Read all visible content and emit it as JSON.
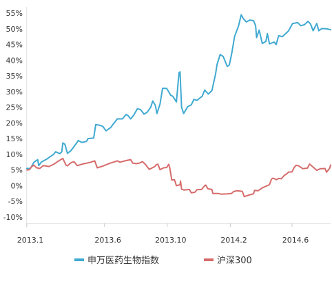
{
  "chart_data": {
    "type": "line",
    "x_ticks": [
      "2013.1",
      "2013.6",
      "2013.10",
      "2014.2",
      "2014.6"
    ],
    "y_ticks": [
      "55%",
      "50%",
      "45%",
      "40%",
      "35%",
      "30%",
      "25%",
      "20%",
      "15%",
      "10%",
      "5%",
      "0%",
      "-5%",
      "-10%"
    ],
    "y_unit": "%",
    "ylim": [
      -12,
      57
    ],
    "xlim": [
      "2013-01-01",
      "2014-08-15"
    ],
    "grid": false,
    "legend_position": "bottom",
    "series": [
      {
        "name": "申万医药生物指数",
        "color": "#3fa9d1",
        "points": [
          [
            "2013-01-01",
            5.5
          ],
          [
            "2013-01-06",
            5.5
          ],
          [
            "2013-01-08",
            5.5
          ],
          [
            "2013-01-15",
            7.5
          ],
          [
            "2013-01-22",
            8.3
          ],
          [
            "2013-01-24",
            6.4
          ],
          [
            "2013-01-29",
            7.5
          ],
          [
            "2013-02-09",
            8.5
          ],
          [
            "2013-02-22",
            10
          ],
          [
            "2013-02-26",
            10.8
          ],
          [
            "2013-03-06",
            10.2
          ],
          [
            "2013-03-10",
            10.8
          ],
          [
            "2013-03-12",
            13.6
          ],
          [
            "2013-03-16",
            13.2
          ],
          [
            "2013-03-21",
            10.3
          ],
          [
            "2013-03-28",
            11.2
          ],
          [
            "2013-04-07",
            13.4
          ],
          [
            "2013-04-11",
            14.4
          ],
          [
            "2013-04-18",
            13.8
          ],
          [
            "2013-04-27",
            14.1
          ],
          [
            "2013-04-30",
            15
          ],
          [
            "2013-05-11",
            15.2
          ],
          [
            "2013-05-15",
            19.5
          ],
          [
            "2013-05-24",
            19.2
          ],
          [
            "2013-05-29",
            18.9
          ],
          [
            "2013-06-04",
            17.5
          ],
          [
            "2013-06-13",
            18.5
          ],
          [
            "2013-06-17",
            19.4
          ],
          [
            "2013-06-26",
            21.3
          ],
          [
            "2013-07-06",
            21.3
          ],
          [
            "2013-07-13",
            22.7
          ],
          [
            "2013-07-17",
            22.3
          ],
          [
            "2013-07-22",
            21.3
          ],
          [
            "2013-07-28",
            22.5
          ],
          [
            "2013-08-04",
            24.5
          ],
          [
            "2013-08-10",
            24.3
          ],
          [
            "2013-08-17",
            22.8
          ],
          [
            "2013-08-23",
            23.4
          ],
          [
            "2013-08-30",
            25
          ],
          [
            "2013-09-03",
            27
          ],
          [
            "2013-09-08",
            25.6
          ],
          [
            "2013-09-11",
            23
          ],
          [
            "2013-09-17",
            26
          ],
          [
            "2013-09-22",
            31
          ],
          [
            "2013-09-30",
            31
          ],
          [
            "2013-10-08",
            28.8
          ],
          [
            "2013-10-12",
            28.5
          ],
          [
            "2013-10-19",
            26.7
          ],
          [
            "2013-10-24",
            36
          ],
          [
            "2013-10-26",
            36.3
          ],
          [
            "2013-10-29",
            25
          ],
          [
            "2013-11-02",
            23
          ],
          [
            "2013-11-10",
            25.2
          ],
          [
            "2013-11-17",
            25.8
          ],
          [
            "2013-11-22",
            27.5
          ],
          [
            "2013-11-28",
            27.2
          ],
          [
            "2013-12-04",
            28
          ],
          [
            "2013-12-08",
            28.5
          ],
          [
            "2013-12-13",
            30.5
          ],
          [
            "2013-12-20",
            29.2
          ],
          [
            "2013-12-27",
            30.3
          ],
          [
            "2014-01-03",
            35.5
          ],
          [
            "2014-01-06",
            38.6
          ],
          [
            "2014-01-12",
            41.8
          ],
          [
            "2014-01-18",
            41.2
          ],
          [
            "2014-01-26",
            38
          ],
          [
            "2014-01-30",
            38.5
          ],
          [
            "2014-02-04",
            42.5
          ],
          [
            "2014-02-09",
            47.5
          ],
          [
            "2014-02-17",
            51
          ],
          [
            "2014-02-22",
            54.5
          ],
          [
            "2014-02-26",
            53.3
          ],
          [
            "2014-03-04",
            52.2
          ],
          [
            "2014-03-11",
            52.8
          ],
          [
            "2014-03-18",
            52.6
          ],
          [
            "2014-03-22",
            51
          ],
          [
            "2014-03-24",
            47.2
          ],
          [
            "2014-03-29",
            49.6
          ],
          [
            "2014-04-04",
            45.3
          ],
          [
            "2014-04-11",
            46
          ],
          [
            "2014-04-14",
            48.5
          ],
          [
            "2014-04-18",
            45.2
          ],
          [
            "2014-04-27",
            45.8
          ],
          [
            "2014-05-01",
            45
          ],
          [
            "2014-05-06",
            47.8
          ],
          [
            "2014-05-13",
            47.5
          ],
          [
            "2014-05-21",
            48.7
          ],
          [
            "2014-05-25",
            49.3
          ],
          [
            "2014-06-02",
            51.7
          ],
          [
            "2014-06-12",
            52
          ],
          [
            "2014-06-18",
            51
          ],
          [
            "2014-06-25",
            51.3
          ],
          [
            "2014-07-02",
            52.4
          ],
          [
            "2014-07-07",
            51.5
          ],
          [
            "2014-07-12",
            49.4
          ],
          [
            "2014-07-19",
            51.7
          ],
          [
            "2014-07-23",
            49.4
          ],
          [
            "2014-07-29",
            50.1
          ],
          [
            "2014-08-08",
            50
          ],
          [
            "2014-08-15",
            49.7
          ]
        ]
      },
      {
        "name": "沪深300",
        "color": "#d66b6b",
        "points": [
          [
            "2013-01-01",
            5
          ],
          [
            "2013-01-06",
            5.1
          ],
          [
            "2013-01-11",
            6.2
          ],
          [
            "2013-01-15",
            6.5
          ],
          [
            "2013-01-20",
            5.7
          ],
          [
            "2013-01-26",
            5.5
          ],
          [
            "2013-02-02",
            6.4
          ],
          [
            "2013-02-13",
            6.1
          ],
          [
            "2013-02-22",
            6.8
          ],
          [
            "2013-03-02",
            7.7
          ],
          [
            "2013-03-12",
            8.7
          ],
          [
            "2013-03-18",
            6.6
          ],
          [
            "2013-03-21",
            6.3
          ],
          [
            "2013-03-26",
            7.1
          ],
          [
            "2013-03-30",
            7.5
          ],
          [
            "2013-04-03",
            7.6
          ],
          [
            "2013-04-09",
            6.4
          ],
          [
            "2013-04-22",
            7
          ],
          [
            "2013-05-04",
            7.4
          ],
          [
            "2013-05-13",
            7.9
          ],
          [
            "2013-05-18",
            5.7
          ],
          [
            "2013-05-28",
            6.2
          ],
          [
            "2013-06-11",
            7.1
          ],
          [
            "2013-06-26",
            7.9
          ],
          [
            "2013-07-01",
            7.5
          ],
          [
            "2013-07-13",
            8
          ],
          [
            "2013-07-22",
            8.3
          ],
          [
            "2013-07-26",
            7.2
          ],
          [
            "2013-08-02",
            7
          ],
          [
            "2013-08-08",
            7.2
          ],
          [
            "2013-08-14",
            7.7
          ],
          [
            "2013-08-20",
            6.7
          ],
          [
            "2013-08-27",
            5.2
          ],
          [
            "2013-09-02",
            5.7
          ],
          [
            "2013-09-07",
            6.1
          ],
          [
            "2013-09-10",
            6.7
          ],
          [
            "2013-09-13",
            6.8
          ],
          [
            "2013-09-17",
            5.1
          ],
          [
            "2013-09-24",
            5.7
          ],
          [
            "2013-09-30",
            5.8
          ],
          [
            "2013-10-04",
            6.8
          ],
          [
            "2013-10-06",
            5.8
          ],
          [
            "2013-10-10",
            1.8
          ],
          [
            "2013-10-15",
            1.9
          ],
          [
            "2013-10-19",
            0
          ],
          [
            "2013-10-26",
            0.3
          ],
          [
            "2013-10-27",
            1.5
          ],
          [
            "2013-10-29",
            -1.1
          ],
          [
            "2013-11-03",
            -1.4
          ],
          [
            "2013-11-13",
            -1.2
          ],
          [
            "2013-11-17",
            -2.3
          ],
          [
            "2013-11-24",
            -2.1
          ],
          [
            "2013-11-28",
            -1.3
          ],
          [
            "2013-12-07",
            -1.2
          ],
          [
            "2013-12-13",
            0
          ],
          [
            "2013-12-15",
            0.2
          ],
          [
            "2013-12-19",
            -1
          ],
          [
            "2013-12-27",
            -1.2
          ],
          [
            "2013-12-29",
            -2.5
          ],
          [
            "2014-01-09",
            -2.5
          ],
          [
            "2014-01-14",
            -2.7
          ],
          [
            "2014-01-27",
            -2.6
          ],
          [
            "2014-02-03",
            -2.5
          ],
          [
            "2014-02-07",
            -1.9
          ],
          [
            "2014-02-14",
            -1.6
          ],
          [
            "2014-02-24",
            -1.8
          ],
          [
            "2014-02-28",
            -3.5
          ],
          [
            "2014-03-09",
            -3
          ],
          [
            "2014-03-18",
            -2.6
          ],
          [
            "2014-03-20",
            -1.5
          ],
          [
            "2014-03-27",
            -1.6
          ],
          [
            "2014-04-04",
            -0.7
          ],
          [
            "2014-04-18",
            0.3
          ],
          [
            "2014-04-22",
            2.1
          ],
          [
            "2014-04-25",
            2.4
          ],
          [
            "2014-05-02",
            1.9
          ],
          [
            "2014-05-06",
            2.3
          ],
          [
            "2014-05-11",
            2.2
          ],
          [
            "2014-05-17",
            3.3
          ],
          [
            "2014-05-21",
            3.7
          ],
          [
            "2014-05-25",
            4.3
          ],
          [
            "2014-06-01",
            4.4
          ],
          [
            "2014-06-05",
            5.8
          ],
          [
            "2014-06-09",
            6.5
          ],
          [
            "2014-06-14",
            6.3
          ],
          [
            "2014-06-22",
            5.4
          ],
          [
            "2014-07-01",
            5.6
          ],
          [
            "2014-07-05",
            6.9
          ],
          [
            "2014-07-12",
            5.9
          ],
          [
            "2014-07-19",
            4.9
          ],
          [
            "2014-07-26",
            5.4
          ],
          [
            "2014-07-31",
            5.4
          ],
          [
            "2014-08-04",
            5.5
          ],
          [
            "2014-08-07",
            4.3
          ],
          [
            "2014-08-13",
            5.5
          ],
          [
            "2014-08-15",
            6.6
          ]
        ]
      }
    ]
  }
}
